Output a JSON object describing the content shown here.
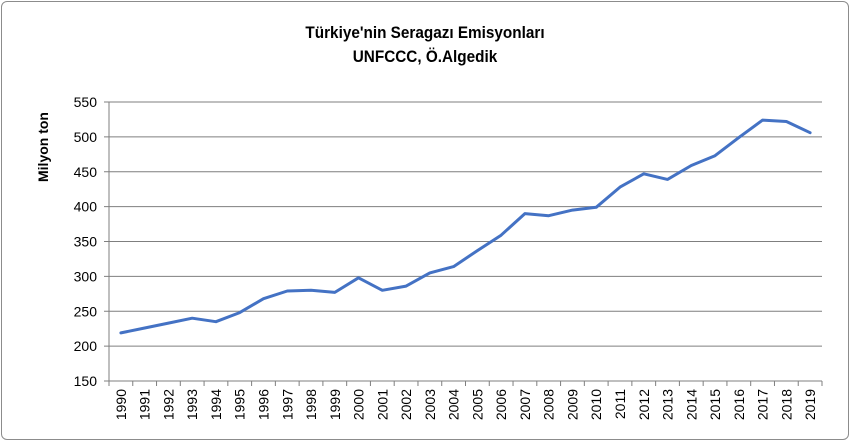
{
  "chart_data": {
    "type": "line",
    "title": "Türkiye'nin Seragazı Emisyonları",
    "subtitle": "UNFCCC, Ö.Algedik",
    "xlabel": "",
    "ylabel": "Milyon ton",
    "ylim": [
      150,
      550
    ],
    "yticks": [
      150,
      200,
      250,
      300,
      350,
      400,
      450,
      500,
      550
    ],
    "grid": true,
    "legend": "none",
    "categories": [
      "1990",
      "1991",
      "1992",
      "1993",
      "1994",
      "1995",
      "1996",
      "1997",
      "1998",
      "1999",
      "2000",
      "2001",
      "2002",
      "2003",
      "2004",
      "2005",
      "2006",
      "2007",
      "2008",
      "2009",
      "2010",
      "2011",
      "2012",
      "2013",
      "2014",
      "2015",
      "2016",
      "2017",
      "2018",
      "2019"
    ],
    "series": [
      {
        "color": "#4472c4",
        "values": [
          219,
          226,
          233,
          240,
          235,
          248,
          268,
          279,
          280,
          277,
          298,
          280,
          286,
          305,
          314,
          337,
          359,
          390,
          387,
          395,
          399,
          428,
          447,
          439,
          459,
          473,
          499,
          524,
          522,
          506
        ]
      }
    ]
  }
}
